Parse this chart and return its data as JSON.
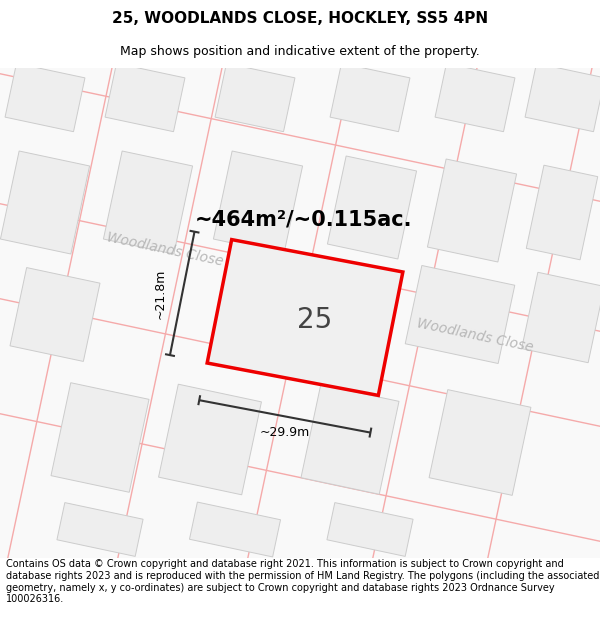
{
  "title": "25, WOODLANDS CLOSE, HOCKLEY, SS5 4PN",
  "subtitle": "Map shows position and indicative extent of the property.",
  "footer": "Contains OS data © Crown copyright and database right 2021. This information is subject to Crown copyright and database rights 2023 and is reproduced with the permission of HM Land Registry. The polygons (including the associated geometry, namely x, y co-ordinates) are subject to Crown copyright and database rights 2023 Ordnance Survey 100026316.",
  "bg_color": "#ffffff",
  "map_bg": "#f8f8f8",
  "parcel_fill": "#eeeeee",
  "parcel_edge": "#cccccc",
  "road_line_color": "#f5aaaa",
  "red_color": "#ee0000",
  "area_text": "~464m²/~0.115ac.",
  "house_number": "25",
  "dim_width": "~29.9m",
  "dim_height": "~21.8m",
  "road_label_1": "Woodlands Close",
  "road_label_2": "Woodlands Close",
  "title_fontsize": 11,
  "subtitle_fontsize": 9,
  "footer_fontsize": 7
}
